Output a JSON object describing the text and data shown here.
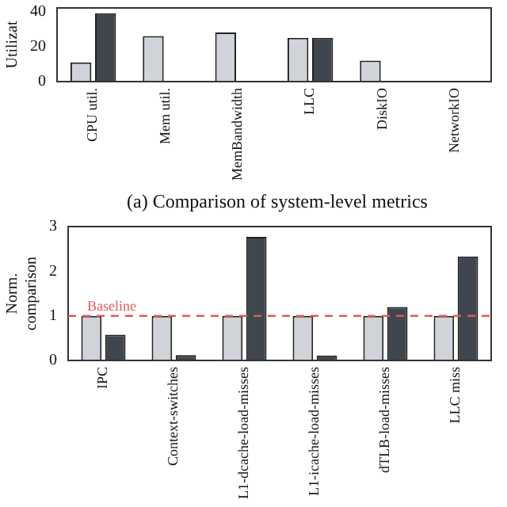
{
  "chart_data": [
    {
      "type": "bar",
      "ylabel": "Utilizat",
      "categories": [
        "CPU util.",
        "Mem util.",
        "MemBandwidth",
        "LLC",
        "DiskIO",
        "NetworkIO"
      ],
      "series": [
        {
          "color": "#d0d3d8",
          "values": [
            11,
            26,
            28,
            25,
            12,
            null
          ]
        },
        {
          "color": "#40464e",
          "values": [
            39,
            null,
            null,
            25,
            null,
            null
          ]
        }
      ],
      "ylim": [
        0,
        42
      ],
      "yticks": [
        0,
        20,
        40
      ],
      "grid": false,
      "legend": false,
      "annotations": [
        "(a) Comparison of system-level metrics"
      ]
    },
    {
      "type": "bar",
      "ylabel": "Norm. comparison",
      "categories": [
        "IPC",
        "Context-switches",
        "L1-dcache-load-misses",
        "L1-icache-load-misses",
        "dTLB-load-misses",
        "LLC miss"
      ],
      "series": [
        {
          "color": "#d0d3d8",
          "values": [
            1,
            1,
            1,
            1,
            1,
            1
          ]
        },
        {
          "color": "#40464e",
          "values": [
            0.58,
            0.12,
            2.77,
            0.11,
            1.2,
            2.33
          ]
        }
      ],
      "ylim": [
        0,
        3
      ],
      "yticks": [
        0,
        1,
        2,
        3
      ],
      "grid": false,
      "legend": false,
      "ref_lines": [
        {
          "axis": "y",
          "value": 1,
          "label": "Baseline",
          "color": "#e05a5a",
          "line_style": "dashed"
        }
      ]
    }
  ]
}
